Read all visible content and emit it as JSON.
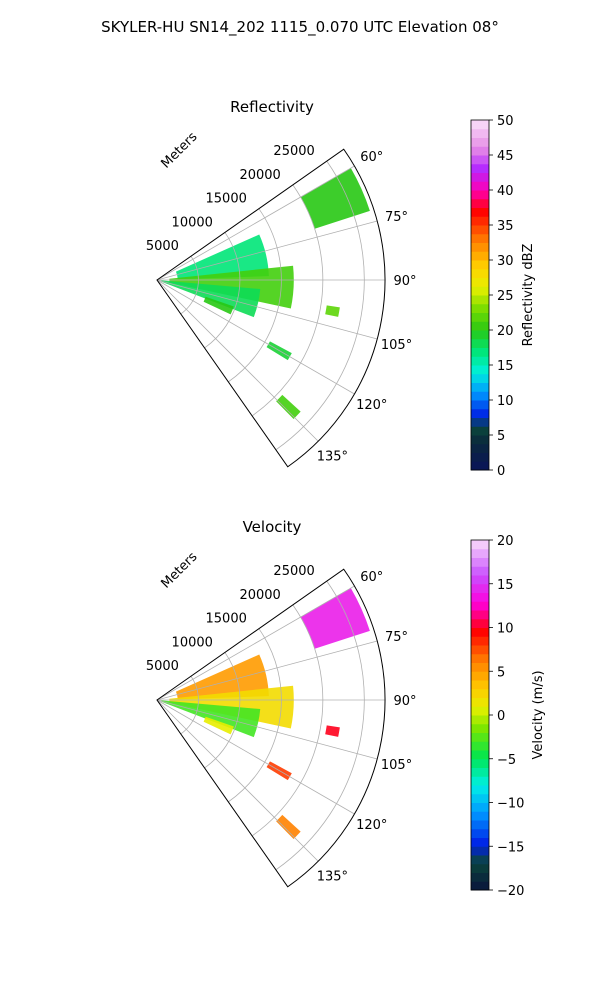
{
  "figure_title": "SKYLER-HU  SN14_202  1115_0.070 UTC Elevation 08°",
  "chart_data": [
    {
      "type": "heatmap",
      "subtype": "polar-radar-sector",
      "title": "Reflectivity",
      "radial_axis_label": "Meters",
      "radial_ticks": [
        "5000",
        "10000",
        "15000",
        "20000",
        "25000"
      ],
      "radial_tick_values": [
        5000,
        10000,
        15000,
        20000,
        25000
      ],
      "rmax": 27500,
      "azimuth_range_deg": [
        55,
        145
      ],
      "azimuth_ticks": [
        "60°",
        "75°",
        "90°",
        "105°",
        "120°",
        "135°"
      ],
      "azimuth_tick_values": [
        60,
        75,
        90,
        105,
        120,
        135
      ],
      "grid": true,
      "colorbar": {
        "label": "Reflectivity dBZ",
        "min": 0,
        "max": 50,
        "ticks": [
          "0",
          "5",
          "10",
          "15",
          "20",
          "25",
          "30",
          "35",
          "40",
          "45",
          "50"
        ],
        "tick_values": [
          0,
          5,
          10,
          15,
          20,
          25,
          30,
          35,
          40,
          45,
          50
        ]
      },
      "echo_regions": [
        {
          "az_center": 66,
          "r_center": 23500,
          "az_half_width": 6,
          "r_half_width": 3500,
          "value_dbz": 20
        },
        {
          "az_center": 77,
          "r_center": 8000,
          "az_half_width": 11,
          "r_half_width": 5500,
          "value_dbz": 17
        },
        {
          "az_center": 93,
          "r_center": 9000,
          "az_half_width": 9,
          "r_half_width": 7500,
          "value_dbz": 21
        },
        {
          "az_center": 103,
          "r_center": 6500,
          "az_half_width": 8,
          "r_half_width": 6000,
          "value_dbz": 18
        },
        {
          "az_center": 112,
          "r_center": 8000,
          "az_half_width": 3,
          "r_half_width": 1800,
          "value_dbz": 20
        },
        {
          "az_center": 100,
          "r_center": 21500,
          "az_half_width": 1.5,
          "r_half_width": 800,
          "value_dbz": 22
        },
        {
          "az_center": 120,
          "r_center": 17000,
          "az_half_width": 1.5,
          "r_half_width": 1500,
          "value_dbz": 19
        },
        {
          "az_center": 134,
          "r_center": 22000,
          "az_half_width": 1.5,
          "r_half_width": 1500,
          "value_dbz": 21
        }
      ]
    },
    {
      "type": "heatmap",
      "subtype": "polar-radar-sector",
      "title": "Velocity",
      "radial_axis_label": "Meters",
      "radial_ticks": [
        "5000",
        "10000",
        "15000",
        "20000",
        "25000"
      ],
      "radial_tick_values": [
        5000,
        10000,
        15000,
        20000,
        25000
      ],
      "rmax": 27500,
      "azimuth_range_deg": [
        55,
        145
      ],
      "azimuth_ticks": [
        "60°",
        "75°",
        "90°",
        "105°",
        "120°",
        "135°"
      ],
      "azimuth_tick_values": [
        60,
        75,
        90,
        105,
        120,
        135
      ],
      "grid": true,
      "colorbar": {
        "label": "Velocity (m/s)",
        "min": -20,
        "max": 20,
        "ticks": [
          "−20",
          "−15",
          "−10",
          "−5",
          "0",
          "5",
          "10",
          "15",
          "20"
        ],
        "tick_values": [
          -20,
          -15,
          -10,
          -5,
          0,
          5,
          10,
          15,
          20
        ]
      },
      "echo_regions": [
        {
          "az_center": 66,
          "r_center": 23500,
          "az_half_width": 6,
          "r_half_width": 3500,
          "value_ms": 14
        },
        {
          "az_center": 77,
          "r_center": 8000,
          "az_half_width": 11,
          "r_half_width": 5500,
          "value_ms": 5
        },
        {
          "az_center": 93,
          "r_center": 9000,
          "az_half_width": 9,
          "r_half_width": 7500,
          "value_ms": 2
        },
        {
          "az_center": 103,
          "r_center": 6500,
          "az_half_width": 8,
          "r_half_width": 6000,
          "value_ms": -3
        },
        {
          "az_center": 112,
          "r_center": 8000,
          "az_half_width": 3,
          "r_half_width": 1800,
          "value_ms": 1
        },
        {
          "az_center": 100,
          "r_center": 21500,
          "az_half_width": 1.5,
          "r_half_width": 800,
          "value_ms": 10
        },
        {
          "az_center": 120,
          "r_center": 17000,
          "az_half_width": 1.5,
          "r_half_width": 1500,
          "value_ms": 8
        },
        {
          "az_center": 134,
          "r_center": 22000,
          "az_half_width": 1.5,
          "r_half_width": 1500,
          "value_ms": 6
        }
      ]
    }
  ]
}
